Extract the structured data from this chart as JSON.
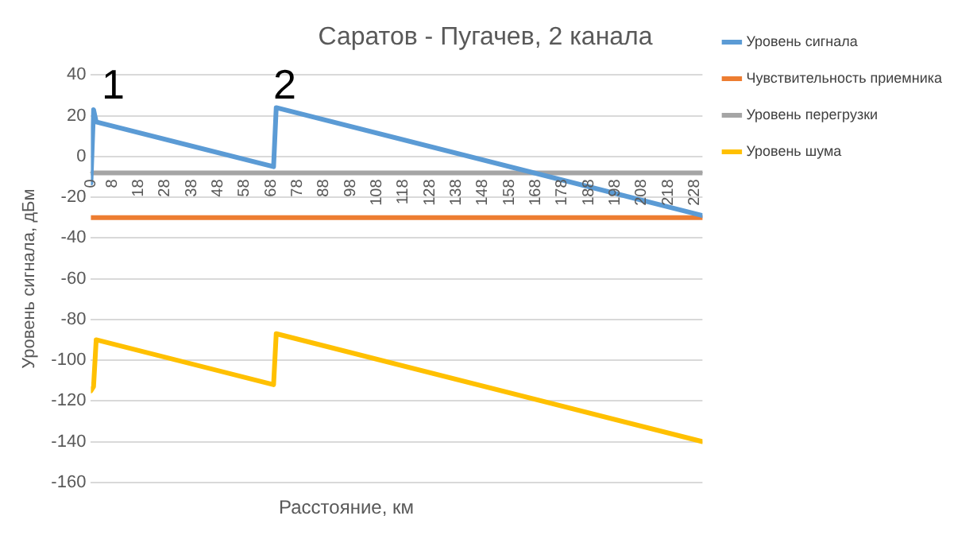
{
  "chart_data": {
    "type": "line",
    "title": "Саратов - Пугачев, 2 канала",
    "xlabel": "Расстояние, км",
    "ylabel": "Уровень сигнала, дБм",
    "series": [
      {
        "name": "Уровень сигнала",
        "color": "#5b9bd5",
        "x": [
          0,
          1,
          2,
          69,
          70,
          231
        ],
        "values": [
          -13,
          23,
          17,
          -5,
          24,
          -29
        ]
      },
      {
        "name": "Чувствительность приемника",
        "color": "#ed7d31",
        "x": [
          0,
          231
        ],
        "values": [
          -30,
          -30
        ]
      },
      {
        "name": "Уровень перегрузки",
        "color": "#a5a5a5",
        "x": [
          0,
          231
        ],
        "values": [
          -8,
          -8
        ]
      },
      {
        "name": "Уровень шума",
        "color": "#ffc000",
        "x": [
          0,
          1,
          2,
          69,
          70,
          231
        ],
        "values": [
          -115,
          -113,
          -90,
          -112,
          -87,
          -140
        ]
      }
    ],
    "xlim": [
      0,
      231
    ],
    "xticks": [
      0,
      8,
      18,
      28,
      38,
      48,
      58,
      68,
      78,
      88,
      98,
      108,
      118,
      128,
      138,
      148,
      158,
      168,
      178,
      188,
      198,
      208,
      218,
      228
    ],
    "ylim": [
      -160,
      40
    ],
    "yticks": [
      -160,
      -140,
      -120,
      -100,
      -80,
      -60,
      -40,
      -20,
      0,
      20,
      40
    ],
    "annotations": [
      "1",
      "2"
    ],
    "grid": "y",
    "legend": "right",
    "marker": "none",
    "line_style": "solid"
  }
}
